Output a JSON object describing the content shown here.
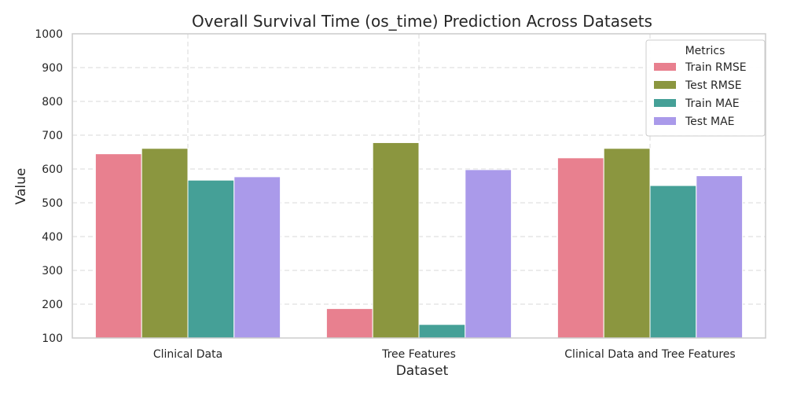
{
  "chart_data": {
    "type": "bar",
    "title": "Overall Survival Time (os_time) Prediction Across Datasets",
    "xlabel": "Dataset",
    "ylabel": "Value",
    "ylim": [
      100,
      1000
    ],
    "yticks": [
      100,
      200,
      300,
      400,
      500,
      600,
      700,
      800,
      900,
      1000
    ],
    "grid": true,
    "legend_title": "Metrics",
    "legend_position": "top-right",
    "categories": [
      "Clinical Data",
      "Tree Features",
      "Clinical Data and Tree Features"
    ],
    "series": [
      {
        "name": "Train RMSE",
        "color": "#e8808f",
        "values": [
          645,
          187,
          633
        ]
      },
      {
        "name": "Test RMSE",
        "color": "#8b963f",
        "values": [
          661,
          678,
          661
        ]
      },
      {
        "name": "Train MAE",
        "color": "#45a097",
        "values": [
          567,
          140,
          551
        ]
      },
      {
        "name": "Test MAE",
        "color": "#aa9aea",
        "values": [
          577,
          598,
          580
        ]
      }
    ]
  }
}
